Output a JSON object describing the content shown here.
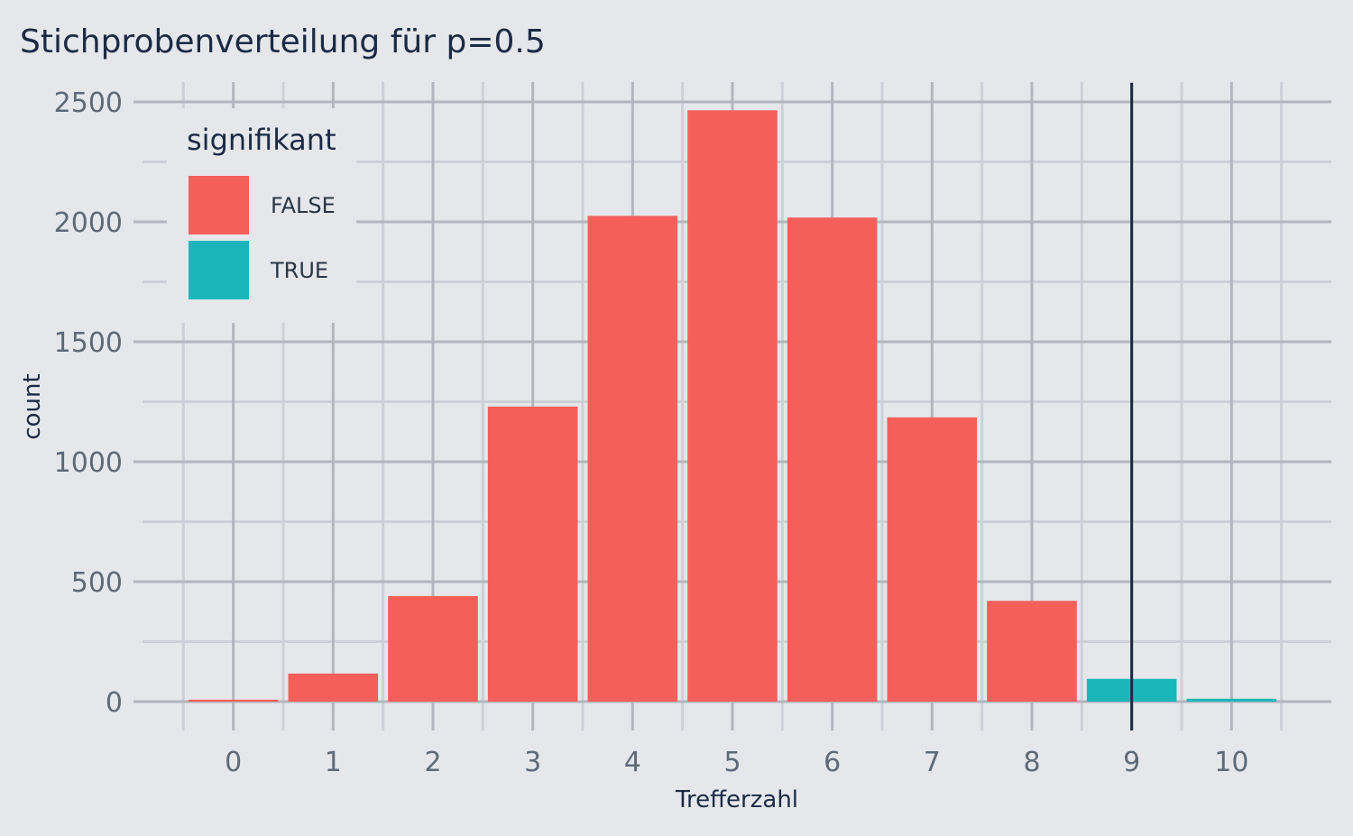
{
  "chart_data": {
    "type": "bar",
    "title": "Stichprobenverteilung für p=0.5",
    "xlabel": "Trefferzahl",
    "ylabel": "count",
    "categories": [
      "0",
      "1",
      "2",
      "3",
      "4",
      "5",
      "6",
      "7",
      "8",
      "9",
      "10"
    ],
    "x": [
      0,
      1,
      2,
      3,
      4,
      5,
      6,
      7,
      8,
      9,
      10
    ],
    "values": [
      8,
      117,
      440,
      1230,
      2025,
      2465,
      2018,
      1185,
      420,
      95,
      12
    ],
    "significant": [
      false,
      false,
      false,
      false,
      false,
      false,
      false,
      false,
      false,
      true,
      true
    ],
    "ylim": [
      -120,
      2500
    ],
    "yticks": [
      0,
      500,
      1000,
      1500,
      2000,
      2500
    ],
    "ytick_labels": [
      "0",
      "500",
      "1000",
      "1500",
      "2000",
      "2500"
    ],
    "xlim": [
      -1,
      11
    ],
    "grid": true,
    "legend": {
      "title": "signifikant",
      "position": "top-left",
      "entries": [
        {
          "label": "FALSE",
          "color": "#f55f5a"
        },
        {
          "label": "TRUE",
          "color": "#1bb6b9"
        }
      ]
    },
    "reference_line": {
      "x": 9,
      "color": "#1b2a45"
    },
    "colors": {
      "false": "#f55f5a",
      "true": "#1bb6b9",
      "background": "#e5e7eb"
    }
  }
}
